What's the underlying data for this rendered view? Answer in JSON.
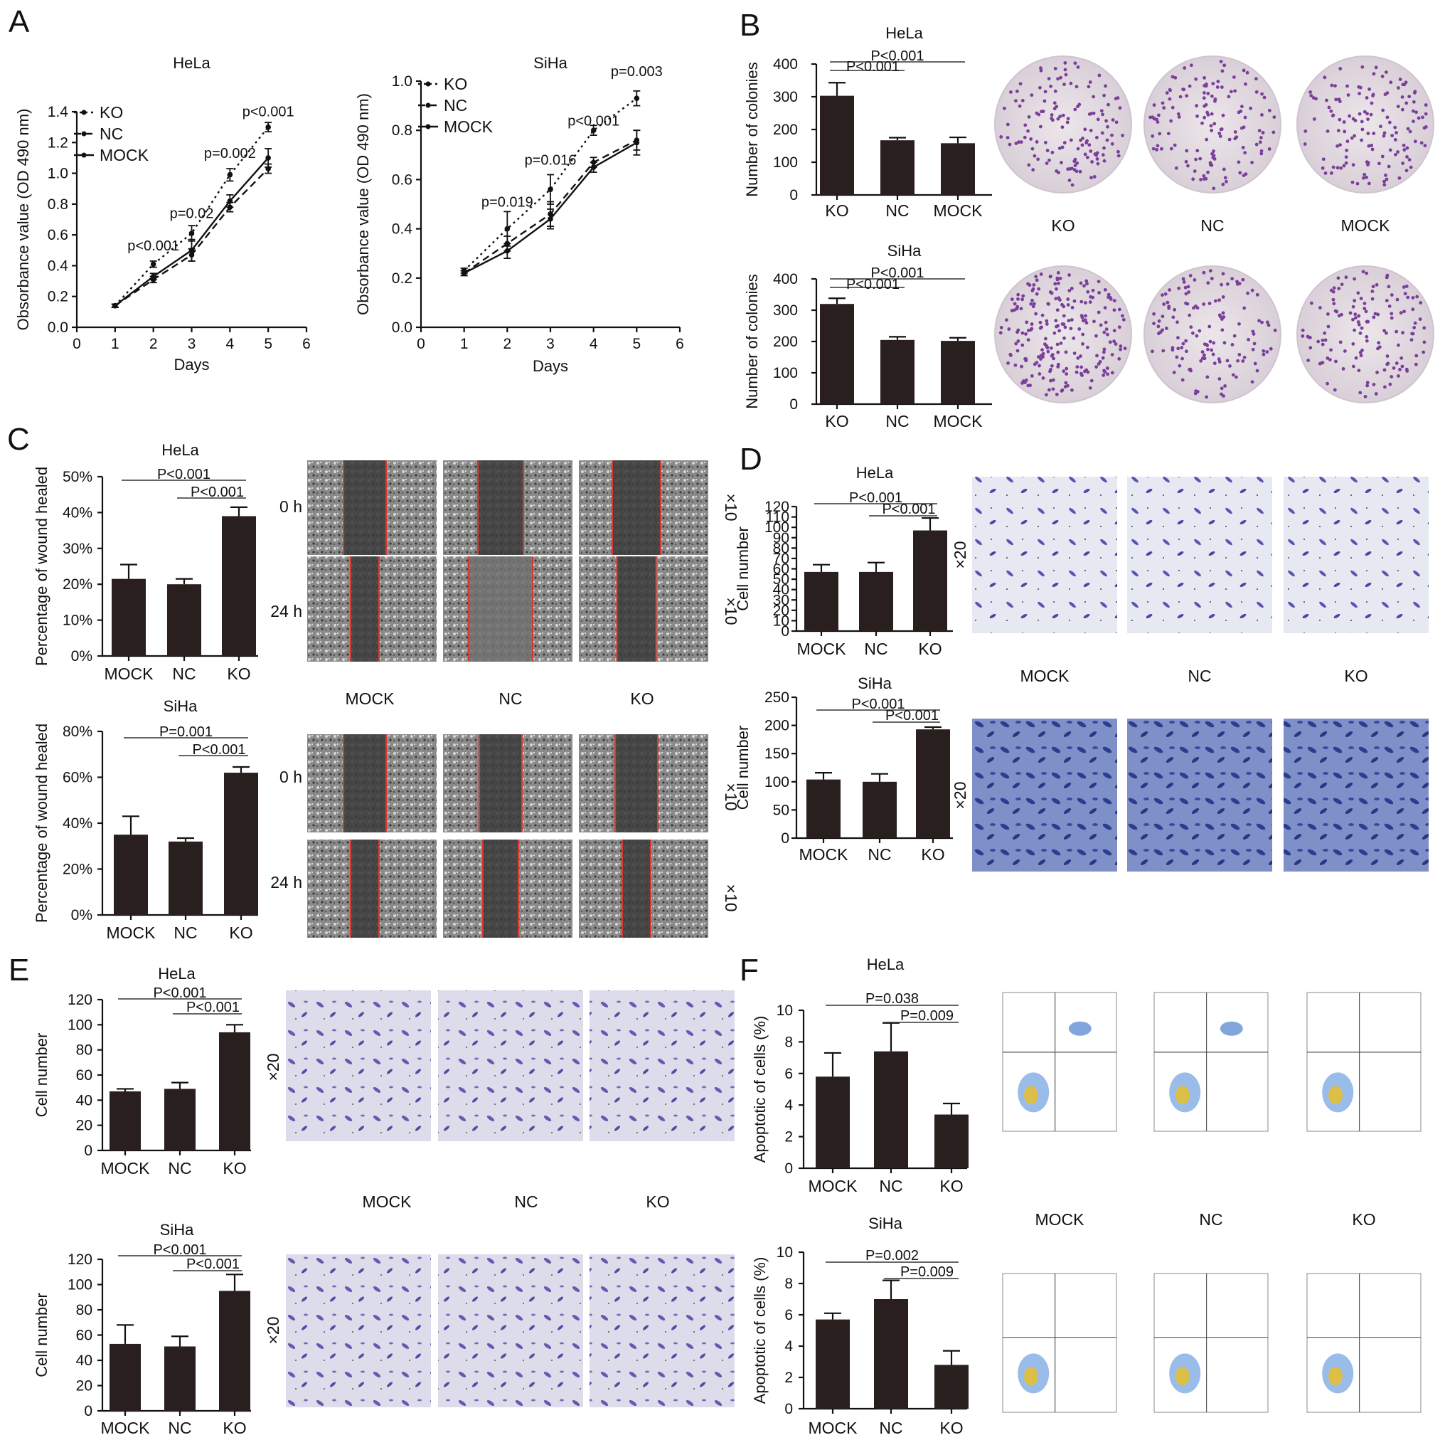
{
  "panels": {
    "A": "A",
    "B": "B",
    "C": "C",
    "D": "D",
    "E": "E",
    "F": "F"
  },
  "image_labels": {
    "colony_groups": [
      "KO",
      "NC",
      "MOCK"
    ],
    "wound_groups": [
      "MOCK",
      "NC",
      "KO"
    ],
    "wound_times": [
      "0 h",
      "24 h"
    ],
    "wound_mag": "×10",
    "transwell_groups": [
      "MOCK",
      "NC",
      "KO"
    ],
    "transwell_mag": "×20",
    "flow_groups": [
      "MOCK",
      "NC",
      "KO"
    ]
  },
  "colors": {
    "bar": "#2a1f1f",
    "wound_line": "#d63a2f",
    "crystal_violet": "#6a3a9a",
    "transwell_blue": "#3e4fa8"
  },
  "chart_data": [
    {
      "id": "A-HeLa",
      "type": "line",
      "title": "HeLa",
      "xlabel": "Days",
      "ylabel": "Obsorbance value (OD 490 nm)",
      "xlim": [
        0,
        6
      ],
      "ylim": [
        0,
        1.4
      ],
      "xticks": [
        0,
        1,
        2,
        3,
        4,
        5,
        6
      ],
      "yticks": [
        0.0,
        0.2,
        0.4,
        0.6,
        0.8,
        1.0,
        1.2,
        1.4
      ],
      "ytick_labels": [
        "0.0",
        "0.2",
        "0.4",
        "0.6",
        "0.8",
        "1.0",
        "1.2",
        "1.4"
      ],
      "x": [
        1,
        2,
        3,
        4,
        5
      ],
      "series": [
        {
          "name": "KO",
          "style": "dotted",
          "values": [
            0.14,
            0.41,
            0.61,
            0.99,
            1.3
          ],
          "errors": [
            0.01,
            0.02,
            0.05,
            0.04,
            0.03
          ]
        },
        {
          "name": "NC",
          "style": "dashed",
          "values": [
            0.14,
            0.31,
            0.47,
            0.78,
            1.03
          ],
          "errors": [
            0.01,
            0.02,
            0.04,
            0.03,
            0.03
          ]
        },
        {
          "name": "MOCK",
          "style": "solid",
          "values": [
            0.14,
            0.33,
            0.5,
            0.82,
            1.1
          ],
          "errors": [
            0.01,
            0.02,
            0.07,
            0.04,
            0.06
          ]
        }
      ],
      "annotations": [
        {
          "x": 2,
          "y": 0.5,
          "text": "p<0.001"
        },
        {
          "x": 3,
          "y": 0.71,
          "text": "p=0.02"
        },
        {
          "x": 4,
          "y": 1.1,
          "text": "p=0.002"
        },
        {
          "x": 5,
          "y": 1.37,
          "text": "p<0.001"
        }
      ],
      "legend_position": "top-left"
    },
    {
      "id": "A-SiHa",
      "type": "line",
      "title": "SiHa",
      "xlabel": "Days",
      "ylabel": "Obsorbance value (OD 490 nm)",
      "xlim": [
        0,
        6
      ],
      "ylim": [
        0,
        1.0
      ],
      "xticks": [
        0,
        1,
        2,
        3,
        4,
        5,
        6
      ],
      "yticks": [
        0.0,
        0.2,
        0.4,
        0.6,
        0.8,
        1.0
      ],
      "ytick_labels": [
        "0.0",
        "0.2",
        "0.4",
        "0.6",
        "0.8",
        "1.0"
      ],
      "x": [
        1,
        2,
        3,
        4,
        5
      ],
      "series": [
        {
          "name": "KO",
          "style": "dotted",
          "values": [
            0.23,
            0.4,
            0.56,
            0.8,
            0.93
          ],
          "errors": [
            0.01,
            0.07,
            0.06,
            0.02,
            0.03
          ]
        },
        {
          "name": "NC",
          "style": "dashed",
          "values": [
            0.22,
            0.34,
            0.46,
            0.67,
            0.76
          ],
          "errors": [
            0.01,
            0.03,
            0.05,
            0.02,
            0.04
          ]
        },
        {
          "name": "MOCK",
          "style": "solid",
          "values": [
            0.22,
            0.31,
            0.44,
            0.65,
            0.75
          ],
          "errors": [
            0.01,
            0.03,
            0.04,
            0.02,
            0.05
          ]
        }
      ],
      "annotations": [
        {
          "x": 2,
          "y": 0.49,
          "text": "p=0.019"
        },
        {
          "x": 3,
          "y": 0.66,
          "text": "p=0.016"
        },
        {
          "x": 4,
          "y": 0.82,
          "text": "p<0.001"
        },
        {
          "x": 5,
          "y": 1.02,
          "text": "p=0.003"
        }
      ],
      "legend_position": "top-left"
    },
    {
      "id": "B-HeLa",
      "type": "bar",
      "title": "HeLa",
      "ylabel": "Number of colonies",
      "categories": [
        "KO",
        "NC",
        "MOCK"
      ],
      "values": [
        303,
        167,
        158
      ],
      "errors": [
        40,
        8,
        18
      ],
      "ylim": [
        0,
        400
      ],
      "yticks": [
        0,
        100,
        200,
        300,
        400
      ],
      "ytick_labels": [
        "0",
        "100",
        "200",
        "300",
        "400"
      ],
      "comparisons": [
        {
          "from": 0,
          "to": 2,
          "text": "P<0.001"
        },
        {
          "from": 0,
          "to": 1,
          "text": "P<0.001"
        }
      ]
    },
    {
      "id": "B-SiHa",
      "type": "bar",
      "title": "SiHa",
      "ylabel": "Number of colonies",
      "categories": [
        "KO",
        "NC",
        "MOCK"
      ],
      "values": [
        320,
        205,
        202
      ],
      "errors": [
        18,
        10,
        10
      ],
      "ylim": [
        0,
        400
      ],
      "yticks": [
        0,
        100,
        200,
        300,
        400
      ],
      "ytick_labels": [
        "0",
        "100",
        "200",
        "300",
        "400"
      ],
      "comparisons": [
        {
          "from": 0,
          "to": 2,
          "text": "P<0.001"
        },
        {
          "from": 0,
          "to": 1,
          "text": "P<0.001"
        }
      ]
    },
    {
      "id": "C-HeLa",
      "type": "bar",
      "title": "HeLa",
      "ylabel": "Percentage of wound healed",
      "categories": [
        "MOCK",
        "NC",
        "KO"
      ],
      "values": [
        21.5,
        20,
        39
      ],
      "errors": [
        4,
        1.5,
        2.5
      ],
      "ylim": [
        0,
        50
      ],
      "yticks": [
        0,
        10,
        20,
        30,
        40,
        50
      ],
      "ytick_labels": [
        "0%",
        "10%",
        "20%",
        "30%",
        "40%",
        "50%"
      ],
      "comparisons": [
        {
          "from": 0,
          "to": 2,
          "text": "P<0.001"
        },
        {
          "from": 1,
          "to": 2,
          "text": "P<0.001"
        }
      ]
    },
    {
      "id": "C-SiHa",
      "type": "bar",
      "title": "SiHa",
      "ylabel": "Percentage of wound healed",
      "categories": [
        "MOCK",
        "NC",
        "KO"
      ],
      "values": [
        35,
        32,
        62
      ],
      "errors": [
        8,
        1.5,
        2.5
      ],
      "ylim": [
        0,
        80
      ],
      "yticks": [
        0,
        20,
        40,
        60,
        80
      ],
      "ytick_labels": [
        "0%",
        "20%",
        "40%",
        "60%",
        "80%"
      ],
      "comparisons": [
        {
          "from": 0,
          "to": 2,
          "text": "P=0.001"
        },
        {
          "from": 1,
          "to": 2,
          "text": "P<0.001"
        }
      ]
    },
    {
      "id": "D-HeLa",
      "type": "bar",
      "title": "HeLa",
      "ylabel": "Cell number",
      "categories": [
        "MOCK",
        "NC",
        "KO"
      ],
      "values": [
        57,
        57,
        97
      ],
      "errors": [
        7,
        9,
        12
      ],
      "ylim": [
        0,
        120
      ],
      "yticks": [
        0,
        10,
        20,
        30,
        40,
        50,
        60,
        70,
        80,
        90,
        100,
        110,
        120
      ],
      "ytick_labels": [
        "0",
        "10",
        "20",
        "30",
        "40",
        "50",
        "60",
        "70",
        "80",
        "90",
        "100",
        "110",
        "120"
      ],
      "comparisons": [
        {
          "from": 0,
          "to": 2,
          "text": "P<0.001"
        },
        {
          "from": 1,
          "to": 2,
          "text": "P<0.001"
        }
      ]
    },
    {
      "id": "D-SiHa",
      "type": "bar",
      "title": "SiHa",
      "ylabel": "Cell number",
      "categories": [
        "MOCK",
        "NC",
        "KO"
      ],
      "values": [
        104,
        100,
        193
      ],
      "errors": [
        12,
        14,
        4
      ],
      "ylim": [
        0,
        250
      ],
      "yticks": [
        0,
        50,
        100,
        150,
        200,
        250
      ],
      "ytick_labels": [
        "0",
        "50",
        "100",
        "150",
        "200",
        "250"
      ],
      "comparisons": [
        {
          "from": 0,
          "to": 2,
          "text": "P<0.001"
        },
        {
          "from": 1,
          "to": 2,
          "text": "P<0.001"
        }
      ]
    },
    {
      "id": "E-HeLa",
      "type": "bar",
      "title": "HeLa",
      "ylabel": "Cell number",
      "categories": [
        "MOCK",
        "NC",
        "KO"
      ],
      "values": [
        47,
        49,
        94
      ],
      "errors": [
        2,
        5,
        6
      ],
      "ylim": [
        0,
        120
      ],
      "yticks": [
        0,
        20,
        40,
        60,
        80,
        100,
        120
      ],
      "ytick_labels": [
        "0",
        "20",
        "40",
        "60",
        "80",
        "100",
        "120"
      ],
      "comparisons": [
        {
          "from": 0,
          "to": 2,
          "text": "P<0.001"
        },
        {
          "from": 1,
          "to": 2,
          "text": "P<0.001"
        }
      ]
    },
    {
      "id": "E-SiHa",
      "type": "bar",
      "title": "SiHa",
      "ylabel": "Cell number",
      "categories": [
        "MOCK",
        "NC",
        "KO"
      ],
      "values": [
        53,
        51,
        95
      ],
      "errors": [
        15,
        8,
        13
      ],
      "ylim": [
        0,
        120
      ],
      "yticks": [
        0,
        20,
        40,
        60,
        80,
        100,
        120
      ],
      "ytick_labels": [
        "0",
        "20",
        "40",
        "60",
        "80",
        "100",
        "120"
      ],
      "comparisons": [
        {
          "from": 0,
          "to": 2,
          "text": "P<0.001"
        },
        {
          "from": 1,
          "to": 2,
          "text": "P<0.001"
        }
      ]
    },
    {
      "id": "F-HeLa",
      "type": "bar",
      "title": "HeLa",
      "ylabel": "Apoptotic of cells (%)",
      "categories": [
        "MOCK",
        "NC",
        "KO"
      ],
      "values": [
        5.8,
        7.4,
        3.4
      ],
      "errors": [
        1.5,
        1.8,
        0.7
      ],
      "ylim": [
        0,
        10
      ],
      "yticks": [
        0,
        2,
        4,
        6,
        8,
        10
      ],
      "ytick_labels": [
        "0",
        "2",
        "4",
        "6",
        "8",
        "10"
      ],
      "comparisons": [
        {
          "from": 0,
          "to": 2,
          "text": "P=0.038"
        },
        {
          "from": 1,
          "to": 2,
          "text": "P=0.009"
        }
      ]
    },
    {
      "id": "F-SiHa",
      "type": "bar",
      "title": "SiHa",
      "ylabel": "Apoptotic of cells (%)",
      "categories": [
        "MOCK",
        "NC",
        "KO"
      ],
      "values": [
        5.7,
        7.0,
        2.8
      ],
      "errors": [
        0.4,
        1.2,
        0.9
      ],
      "ylim": [
        0,
        10
      ],
      "yticks": [
        0,
        2,
        4,
        6,
        8,
        10
      ],
      "ytick_labels": [
        "0",
        "2",
        "4",
        "6",
        "8",
        "10"
      ],
      "comparisons": [
        {
          "from": 0,
          "to": 2,
          "text": "P=0.002"
        },
        {
          "from": 1,
          "to": 2,
          "text": "P=0.009"
        }
      ]
    }
  ]
}
